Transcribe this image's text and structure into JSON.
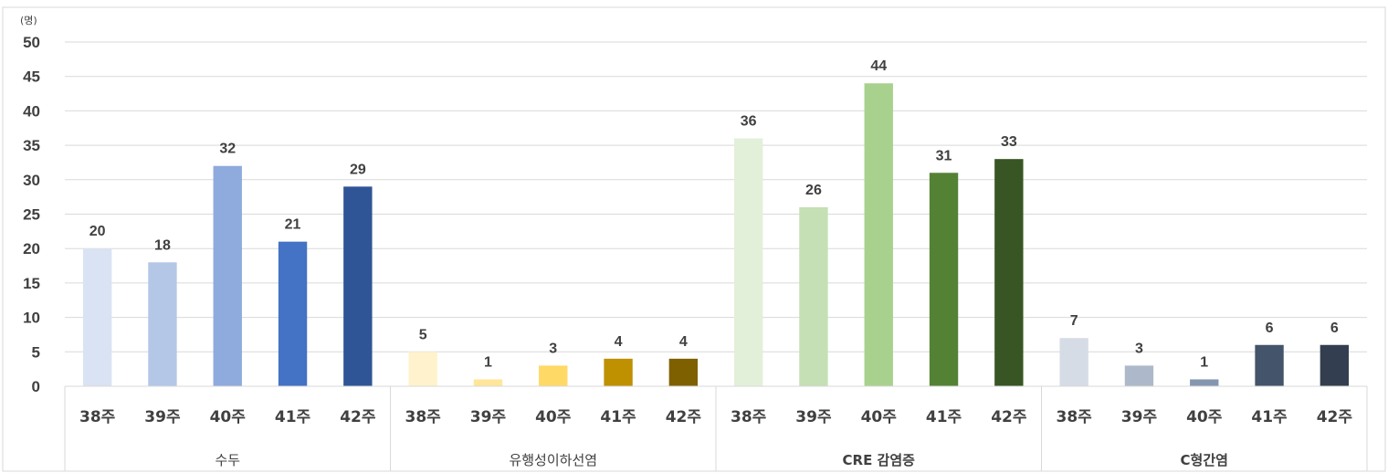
{
  "chart_data": {
    "type": "bar",
    "y_unit": "(명)",
    "ylim": [
      0,
      50
    ],
    "y_ticks": [
      "0",
      "5",
      "10",
      "15",
      "20",
      "25",
      "30",
      "35",
      "40",
      "45",
      "50"
    ],
    "grid": true,
    "legend": "none",
    "groups": [
      {
        "name": "수두",
        "categories": [
          "38주",
          "39주",
          "40주",
          "41주",
          "42주"
        ],
        "values": [
          20,
          18,
          32,
          21,
          29
        ],
        "colors": [
          "#dae3f3",
          "#b4c7e7",
          "#8faadc",
          "#4472c4",
          "#2f5597"
        ]
      },
      {
        "name": "유행성이하선염",
        "categories": [
          "38주",
          "39주",
          "40주",
          "41주",
          "42주"
        ],
        "values": [
          5,
          1,
          3,
          4,
          4
        ],
        "colors": [
          "#fff2cc",
          "#ffe699",
          "#ffd966",
          "#bf9000",
          "#7f6000"
        ]
      },
      {
        "name": "CRE 감염증",
        "categories": [
          "38주",
          "39주",
          "40주",
          "41주",
          "42주"
        ],
        "values": [
          36,
          26,
          44,
          31,
          33
        ],
        "colors": [
          "#e2f0d9",
          "#c5e0b4",
          "#a9d18e",
          "#548235",
          "#375623"
        ]
      },
      {
        "name": "C형간염",
        "categories": [
          "38주",
          "39주",
          "40주",
          "41주",
          "42주"
        ],
        "values": [
          7,
          3,
          1,
          6,
          6
        ],
        "colors": [
          "#d6dce5",
          "#adb9ca",
          "#8497b0",
          "#44546a",
          "#333f50"
        ]
      }
    ]
  }
}
